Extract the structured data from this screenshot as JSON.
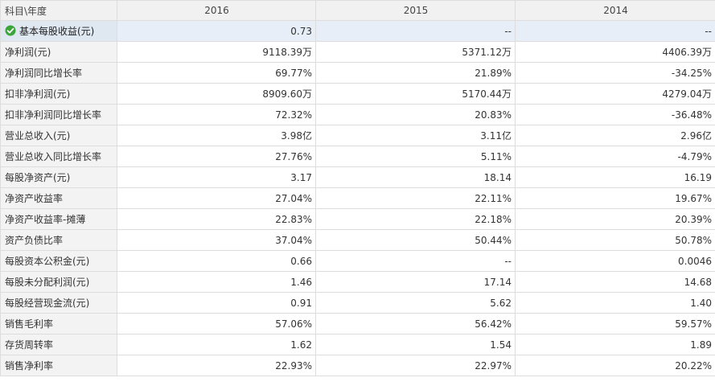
{
  "table": {
    "header": {
      "label": "科目\\年度",
      "years": [
        "2016",
        "2015",
        "2014"
      ]
    },
    "rows": [
      {
        "label": "基本每股收益(元)",
        "values": [
          "0.73",
          "--",
          "--"
        ],
        "selected": true
      },
      {
        "label": "净利润(元)",
        "values": [
          "9118.39万",
          "5371.12万",
          "4406.39万"
        ]
      },
      {
        "label": "净利润同比增长率",
        "values": [
          "69.77%",
          "21.89%",
          "-34.25%"
        ]
      },
      {
        "label": "扣非净利润(元)",
        "values": [
          "8909.60万",
          "5170.44万",
          "4279.04万"
        ]
      },
      {
        "label": "扣非净利润同比增长率",
        "values": [
          "72.32%",
          "20.83%",
          "-36.48%"
        ]
      },
      {
        "label": "营业总收入(元)",
        "values": [
          "3.98亿",
          "3.11亿",
          "2.96亿"
        ]
      },
      {
        "label": "营业总收入同比增长率",
        "values": [
          "27.76%",
          "5.11%",
          "-4.79%"
        ]
      },
      {
        "label": "每股净资产(元)",
        "values": [
          "3.17",
          "18.14",
          "16.19"
        ]
      },
      {
        "label": "净资产收益率",
        "values": [
          "27.04%",
          "22.11%",
          "19.67%"
        ]
      },
      {
        "label": "净资产收益率-摊薄",
        "values": [
          "22.83%",
          "22.18%",
          "20.39%"
        ]
      },
      {
        "label": "资产负债比率",
        "values": [
          "37.04%",
          "50.44%",
          "50.78%"
        ]
      },
      {
        "label": "每股资本公积金(元)",
        "values": [
          "0.66",
          "--",
          "0.0046"
        ]
      },
      {
        "label": "每股未分配利润(元)",
        "values": [
          "1.46",
          "17.14",
          "14.68"
        ]
      },
      {
        "label": "每股经营现金流(元)",
        "values": [
          "0.91",
          "5.62",
          "1.40"
        ]
      },
      {
        "label": "销售毛利率",
        "values": [
          "57.06%",
          "56.42%",
          "59.57%"
        ]
      },
      {
        "label": "存货周转率",
        "values": [
          "1.62",
          "1.54",
          "1.89"
        ]
      },
      {
        "label": "销售净利率",
        "values": [
          "22.93%",
          "22.97%",
          "20.22%"
        ]
      }
    ]
  },
  "icons": {
    "selected_row_icon": "check-circle-icon"
  },
  "colors": {
    "check_icon": "#3aa63a",
    "header_bg": "#f1f1f1",
    "label_bg": "#f3f3f3",
    "selected_row_bg": "#e7eef7",
    "border": "#dddddd"
  }
}
